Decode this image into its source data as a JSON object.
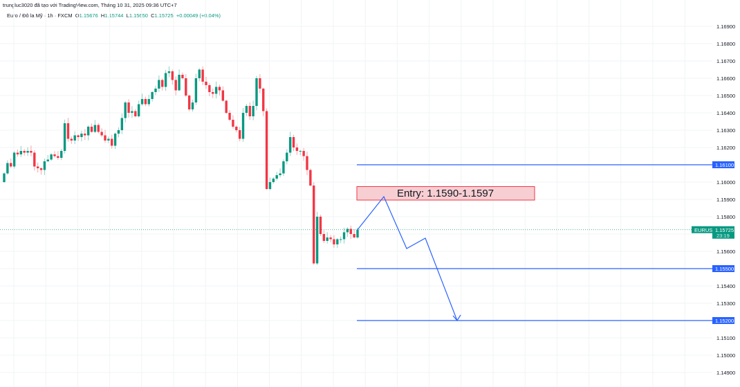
{
  "credit": "trungluc3020 đã tạo với TradingView.com, Tháng 10 31, 2025 09:36 UTC+7",
  "legend": {
    "symbol": "Euro / Đô la Mỹ · 1h · FXCM",
    "open_label": "O",
    "open": "1.15676",
    "high_label": "H",
    "high": "1.15744",
    "low_label": "L",
    "low": "1.15650",
    "close_label": "C",
    "close": "1.15725",
    "change": "+0.00049 (+0.04%)"
  },
  "colors": {
    "up": "#089981",
    "down": "#f23645",
    "levels": "#2962ff",
    "entry_fill": "#f7cfd3",
    "entry_border": "#f23645"
  },
  "chart_data": {
    "type": "candlestick",
    "ylim": [
      1.1485,
      1.1698
    ],
    "grid": true,
    "y_ticks": [
      "1.16900",
      "1.16800",
      "1.16700",
      "1.16600",
      "1.16500",
      "1.16400",
      "1.16300",
      "1.16200",
      "1.16000",
      "1.15900",
      "1.15800",
      "1.15600",
      "1.15400",
      "1.15300",
      "1.15100",
      "1.15000",
      "1.14900"
    ],
    "first_open": 1.16,
    "closes": [
      1.1605,
      1.1611,
      1.1609,
      1.1617,
      1.1616,
      1.1618,
      1.1617,
      1.1618,
      1.1617,
      1.1609,
      1.1608,
      1.1607,
      1.1612,
      1.1613,
      1.1616,
      1.1615,
      1.1614,
      1.1618,
      1.1634,
      1.1625,
      1.1624,
      1.1627,
      1.1626,
      1.1628,
      1.1627,
      1.1632,
      1.1629,
      1.1633,
      1.1629,
      1.1627,
      1.1624,
      1.1625,
      1.1621,
      1.1628,
      1.163,
      1.1637,
      1.1646,
      1.164,
      1.1641,
      1.1638,
      1.1645,
      1.1648,
      1.1645,
      1.1648,
      1.1652,
      1.1654,
      1.1659,
      1.1655,
      1.1663,
      1.1664,
      1.1659,
      1.1653,
      1.1662,
      1.166,
      1.165,
      1.1642,
      1.1646,
      1.166,
      1.1665,
      1.1658,
      1.1656,
      1.1652,
      1.1651,
      1.1655,
      1.1653,
      1.1647,
      1.164,
      1.1636,
      1.1632,
      1.163,
      1.1625,
      1.164,
      1.1644,
      1.1638,
      1.1644,
      1.166,
      1.1654,
      1.1641,
      1.1596,
      1.16,
      1.1602,
      1.1604,
      1.1605,
      1.1612,
      1.1617,
      1.1626,
      1.162,
      1.1618,
      1.1618,
      1.1615,
      1.1607,
      1.1598,
      1.1553,
      1.158,
      1.157,
      1.1566,
      1.1568,
      1.1567,
      1.1564,
      1.1567,
      1.1567,
      1.1571,
      1.1573,
      1.157,
      1.1568,
      1.15725
    ],
    "current_price": {
      "symbol": "EURUSD",
      "price": "1.15725",
      "countdown": "23:19",
      "value": 1.15725
    },
    "levels": [
      {
        "label": "1.16100",
        "value": 1.161
      },
      {
        "label": "1.15500",
        "value": 1.155
      },
      {
        "label": "1.15200",
        "value": 1.152
      }
    ],
    "entry_zone": {
      "label": "Entry: 1.1590-1.1597",
      "low": 1.159,
      "high": 1.1597
    },
    "projection_prices": [
      1.15725,
      1.15916,
      1.15616,
      1.15676,
      1.152
    ]
  }
}
